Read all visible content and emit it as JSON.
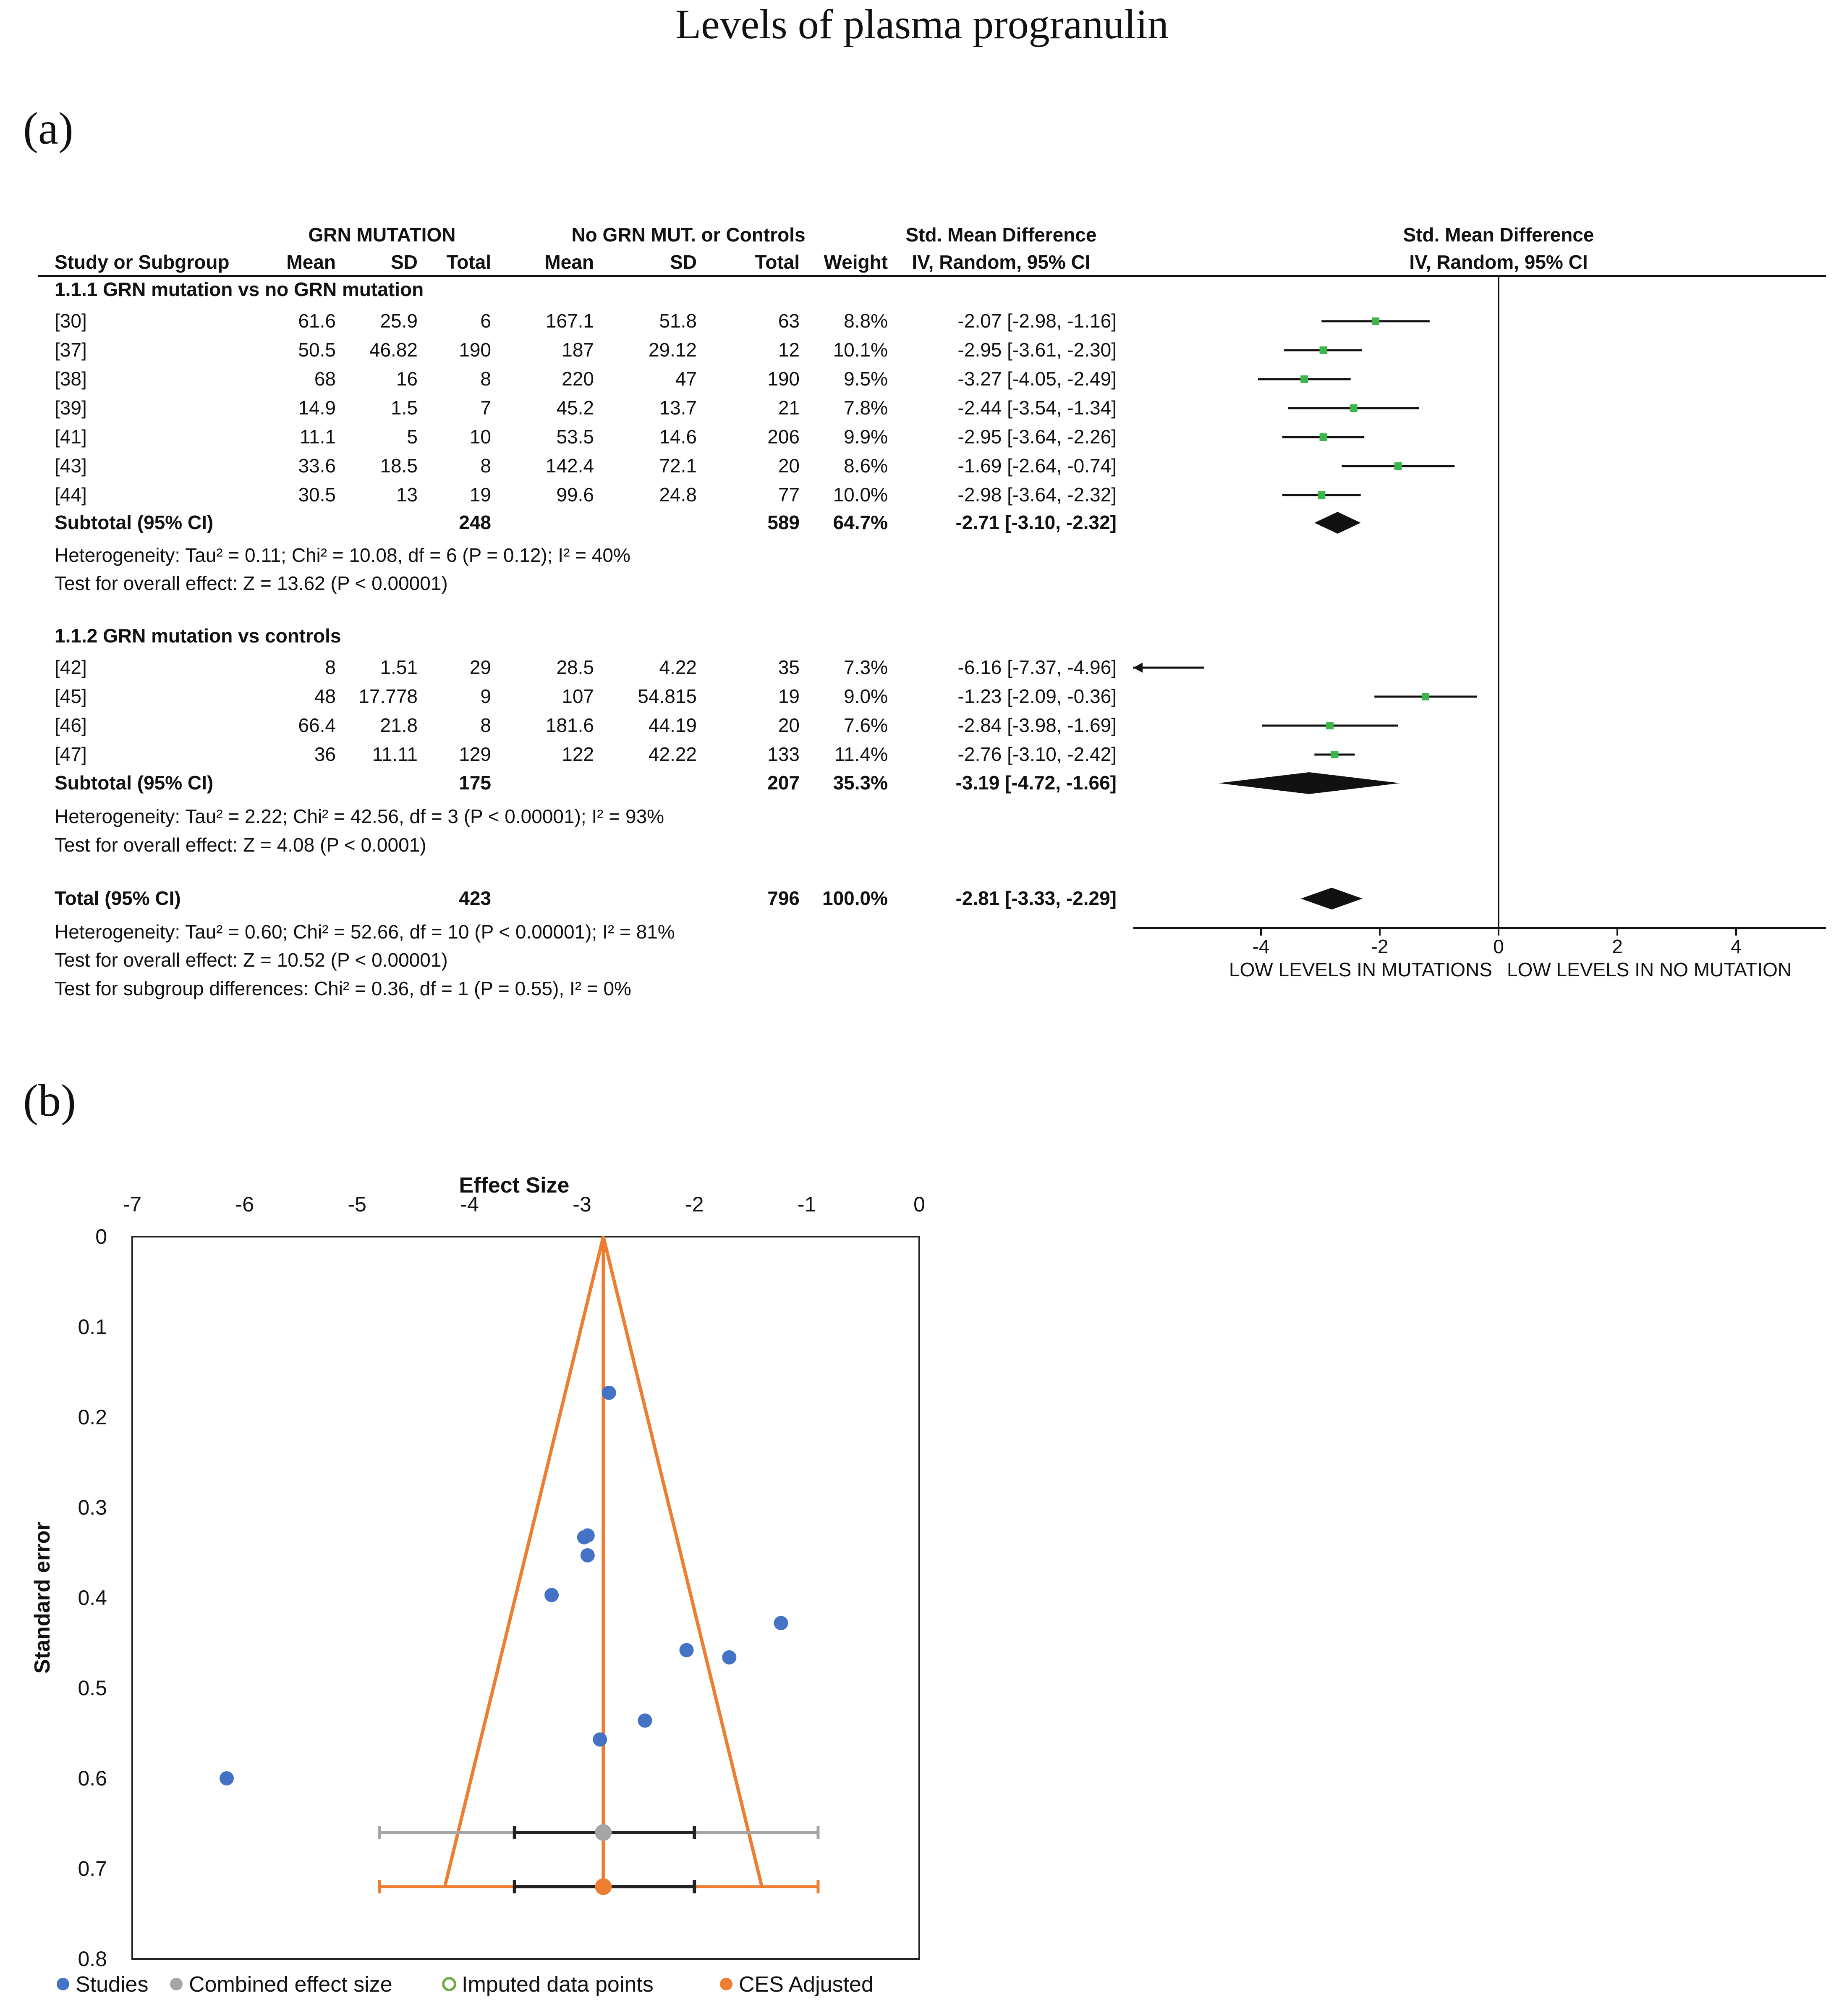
{
  "title": "Levels of plasma progranulin",
  "panel_a_label": "(a)",
  "panel_b_label": "(b)",
  "forest": {
    "headers": {
      "group1": "GRN MUTATION",
      "group2": "No GRN MUT. or Controls",
      "smd": "Std. Mean Difference",
      "smd_plot": "Std. Mean Difference",
      "study": "Study or Subgroup",
      "mean1": "Mean",
      "sd1": "SD",
      "total1": "Total",
      "mean2": "Mean",
      "sd2": "SD",
      "total2": "Total",
      "weight": "Weight",
      "method": "IV, Random, 95% CI",
      "method_plot": "IV, Random, 95% CI"
    },
    "subgroups": [
      {
        "label": "1.1.1 GRN mutation vs no GRN mutation",
        "rows": [
          {
            "study": "[30]",
            "mean1": "61.6",
            "sd1": "25.9",
            "n1": "6",
            "mean2": "167.1",
            "sd2": "51.8",
            "n2": "63",
            "weight": "8.8%",
            "ci": "-2.07 [-2.98, -1.16]",
            "est": -2.07,
            "lo": -2.98,
            "hi": -1.16
          },
          {
            "study": "[37]",
            "mean1": "50.5",
            "sd1": "46.82",
            "n1": "190",
            "mean2": "187",
            "sd2": "29.12",
            "n2": "12",
            "weight": "10.1%",
            "ci": "-2.95 [-3.61, -2.30]",
            "est": -2.95,
            "lo": -3.61,
            "hi": -2.3
          },
          {
            "study": "[38]",
            "mean1": "68",
            "sd1": "16",
            "n1": "8",
            "mean2": "220",
            "sd2": "47",
            "n2": "190",
            "weight": "9.5%",
            "ci": "-3.27 [-4.05, -2.49]",
            "est": -3.27,
            "lo": -4.05,
            "hi": -2.49
          },
          {
            "study": "[39]",
            "mean1": "14.9",
            "sd1": "1.5",
            "n1": "7",
            "mean2": "45.2",
            "sd2": "13.7",
            "n2": "21",
            "weight": "7.8%",
            "ci": "-2.44 [-3.54, -1.34]",
            "est": -2.44,
            "lo": -3.54,
            "hi": -1.34
          },
          {
            "study": "[41]",
            "mean1": "11.1",
            "sd1": "5",
            "n1": "10",
            "mean2": "53.5",
            "sd2": "14.6",
            "n2": "206",
            "weight": "9.9%",
            "ci": "-2.95 [-3.64, -2.26]",
            "est": -2.95,
            "lo": -3.64,
            "hi": -2.26
          },
          {
            "study": "[43]",
            "mean1": "33.6",
            "sd1": "18.5",
            "n1": "8",
            "mean2": "142.4",
            "sd2": "72.1",
            "n2": "20",
            "weight": "8.6%",
            "ci": "-1.69 [-2.64, -0.74]",
            "est": -1.69,
            "lo": -2.64,
            "hi": -0.74
          },
          {
            "study": "[44]",
            "mean1": "30.5",
            "sd1": "13",
            "n1": "19",
            "mean2": "99.6",
            "sd2": "24.8",
            "n2": "77",
            "weight": "10.0%",
            "ci": "-2.98 [-3.64, -2.32]",
            "est": -2.98,
            "lo": -3.64,
            "hi": -2.32
          }
        ],
        "subtotal": {
          "label": "Subtotal (95% CI)",
          "n1": "248",
          "n2": "589",
          "weight": "64.7%",
          "ci": "-2.71 [-3.10, -2.32]",
          "est": -2.71,
          "lo": -3.1,
          "hi": -2.32
        },
        "heterogeneity": "Heterogeneity: Tau² = 0.11; Chi² = 10.08, df = 6 (P = 0.12); I² = 40%",
        "overall": "Test for overall effect: Z = 13.62 (P < 0.00001)"
      },
      {
        "label": "1.1.2 GRN mutation vs controls",
        "rows": [
          {
            "study": "[42]",
            "mean1": "8",
            "sd1": "1.51",
            "n1": "29",
            "mean2": "28.5",
            "sd2": "4.22",
            "n2": "35",
            "weight": "7.3%",
            "ci": "-6.16 [-7.37, -4.96]",
            "est": -6.16,
            "lo": -7.37,
            "hi": -4.96
          },
          {
            "study": "[45]",
            "mean1": "48",
            "sd1": "17.778",
            "n1": "9",
            "mean2": "107",
            "sd2": "54.815",
            "n2": "19",
            "weight": "9.0%",
            "ci": "-1.23 [-2.09, -0.36]",
            "est": -1.23,
            "lo": -2.09,
            "hi": -0.36
          },
          {
            "study": "[46]",
            "mean1": "66.4",
            "sd1": "21.8",
            "n1": "8",
            "mean2": "181.6",
            "sd2": "44.19",
            "n2": "20",
            "weight": "7.6%",
            "ci": "-2.84 [-3.98, -1.69]",
            "est": -2.84,
            "lo": -3.98,
            "hi": -1.69
          },
          {
            "study": "[47]",
            "mean1": "36",
            "sd1": "11.11",
            "n1": "129",
            "mean2": "122",
            "sd2": "42.22",
            "n2": "133",
            "weight": "11.4%",
            "ci": "-2.76 [-3.10, -2.42]",
            "est": -2.76,
            "lo": -3.1,
            "hi": -2.42
          }
        ],
        "subtotal": {
          "label": "Subtotal (95% CI)",
          "n1": "175",
          "n2": "207",
          "weight": "35.3%",
          "ci": "-3.19 [-4.72, -1.66]",
          "est": -3.19,
          "lo": -4.72,
          "hi": -1.66
        },
        "heterogeneity": "Heterogeneity: Tau² = 2.22; Chi² = 42.56, df = 3 (P < 0.00001); I² = 93%",
        "overall": "Test for overall effect: Z = 4.08 (P < 0.0001)"
      }
    ],
    "total": {
      "label": "Total (95% CI)",
      "n1": "423",
      "n2": "796",
      "weight": "100.0%",
      "ci": "-2.81 [-3.33, -2.29]",
      "est": -2.81,
      "lo": -3.33,
      "hi": -2.29
    },
    "total_heterogeneity": "Heterogeneity: Tau² = 0.60; Chi² = 52.66, df = 10 (P < 0.00001); I² = 81%",
    "total_overall": "Test for overall effect: Z = 10.52 (P < 0.00001)",
    "subgroup_diff": "Test for subgroup differences: Chi² = 0.36, df = 1 (P = 0.55), I² = 0%",
    "axis_ticks": [
      -4,
      -2,
      0,
      2,
      4
    ],
    "axis_tick_labels": [
      "-4",
      "-2",
      "0",
      "2",
      "4"
    ],
    "xlim": [
      -6.4,
      5.7
    ],
    "favours_left": "LOW LEVELS IN MUTATIONS",
    "favours_right": "LOW LEVELS IN NO MUTATION"
  },
  "chart_data": [
    {
      "type": "forest",
      "title": "Std. Mean Difference IV, Random, 95% CI",
      "studies": [
        "[30]",
        "[37]",
        "[38]",
        "[39]",
        "[41]",
        "[43]",
        "[44]",
        "[42]",
        "[45]",
        "[46]",
        "[47]"
      ],
      "estimates": [
        -2.07,
        -2.95,
        -3.27,
        -2.44,
        -2.95,
        -1.69,
        -2.98,
        -6.16,
        -1.23,
        -2.84,
        -2.76
      ],
      "ci_low": [
        -2.98,
        -3.61,
        -4.05,
        -3.54,
        -3.64,
        -2.64,
        -3.64,
        -7.37,
        -2.09,
        -3.98,
        -3.1
      ],
      "ci_high": [
        -1.16,
        -2.3,
        -2.49,
        -1.34,
        -2.26,
        -0.74,
        -2.32,
        -4.96,
        -0.36,
        -1.69,
        -2.42
      ],
      "xlabel_left": "LOW LEVELS IN MUTATIONS",
      "xlabel_right": "LOW LEVELS IN NO MUTATION"
    },
    {
      "type": "scatter",
      "title": "",
      "xlabel": "Effect Size",
      "ylabel": "Standard error",
      "xlim": [
        -7,
        0
      ],
      "ylim": [
        0,
        0.8
      ],
      "x_ticks": [
        -7,
        -6,
        -5,
        -4,
        -3,
        -2,
        -1,
        0
      ],
      "x_tick_labels": [
        "-7",
        "-6",
        "-5",
        "-4",
        "-3",
        "-2",
        "-1",
        "0"
      ],
      "y_ticks": [
        0,
        0.1,
        0.2,
        0.3,
        0.4,
        0.5,
        0.6,
        0.7,
        0.8
      ],
      "y_tick_labels": [
        "0",
        "0.1",
        "0.2",
        "0.3",
        "0.4",
        "0.5",
        "0.6",
        "0.7",
        "0.8"
      ],
      "series": [
        {
          "name": "Studies",
          "color": "#4472C4",
          "points": [
            [
              -2.76,
              0.173
            ],
            [
              -2.98,
              0.333
            ],
            [
              -2.95,
              0.331
            ],
            [
              -2.95,
              0.353
            ],
            [
              -3.27,
              0.397
            ],
            [
              -1.23,
              0.428
            ],
            [
              -2.07,
              0.458
            ],
            [
              -1.69,
              0.466
            ],
            [
              -2.44,
              0.536
            ],
            [
              -2.84,
              0.557
            ],
            [
              -6.16,
              0.6
            ]
          ]
        },
        {
          "name": "Combined effect size",
          "color": "#A5A5A5",
          "point": [
            -2.81,
            0.66
          ],
          "ci_inner": [
            -3.6,
            -2.0
          ],
          "ci_outer": [
            -4.8,
            -0.9
          ]
        },
        {
          "name": "Imputed data points",
          "color": "#70AD47",
          "points": []
        },
        {
          "name": "CES Adjusted",
          "color": "#ED7D31",
          "point": [
            -2.81,
            0.72
          ],
          "ci_inner": [
            -3.6,
            -2.0
          ],
          "ci_outer": [
            -4.8,
            -0.9
          ]
        }
      ],
      "funnel": {
        "apex": [
          -2.81,
          0
        ],
        "base_y": 0.72,
        "left_x": -4.22,
        "right_x": -1.4,
        "color": "#ED7D31"
      },
      "legend": [
        {
          "label": "Studies",
          "color": "#4472C4",
          "marker": "dot"
        },
        {
          "label": "Combined effect size",
          "color": "#A5A5A5",
          "marker": "dot"
        },
        {
          "label": "Imputed data points",
          "color": "#70AD47",
          "marker": "ring"
        },
        {
          "label": "CES Adjusted",
          "color": "#ED7D31",
          "marker": "dot"
        }
      ],
      "legend_position": "bottom"
    }
  ]
}
